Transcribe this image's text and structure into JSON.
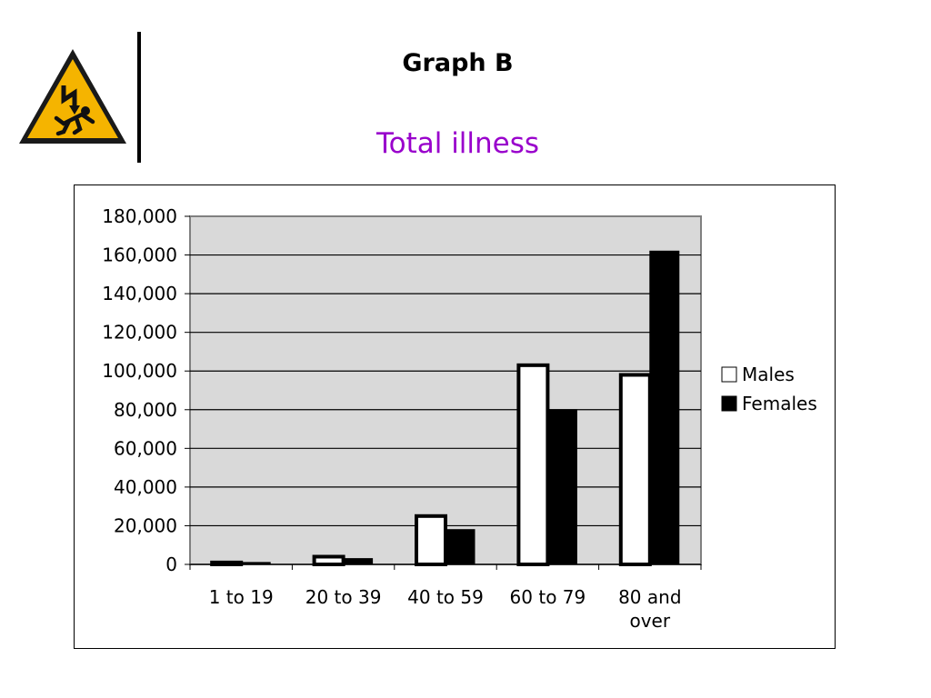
{
  "header": {
    "title": "Graph B",
    "subtitle": "Total illness",
    "icon": "electric-shock-warning-icon"
  },
  "colors": {
    "title": "#000000",
    "subtitle": "#9900cc",
    "plot_background": "#d9d9d9",
    "males": "#ffffff",
    "females": "#000000",
    "warning_yellow": "#f5b400"
  },
  "chart_data": {
    "type": "bar",
    "title": "",
    "xlabel": "",
    "ylabel": "",
    "categories": [
      "1 to 19",
      "20 to 39",
      "40 to 59",
      "60 to 79",
      "80 and over"
    ],
    "series": [
      {
        "name": "Males",
        "values": [
          1000,
          4000,
          25000,
          103000,
          98000
        ]
      },
      {
        "name": "Females",
        "values": [
          1000,
          3000,
          18000,
          80000,
          162000
        ]
      }
    ],
    "ylim": [
      0,
      180000
    ],
    "yticks": [
      "0",
      "20,000",
      "40,000",
      "60,000",
      "80,000",
      "100,000",
      "120,000",
      "140,000",
      "160,000",
      "180,000"
    ],
    "grid": true,
    "legend": "right"
  }
}
